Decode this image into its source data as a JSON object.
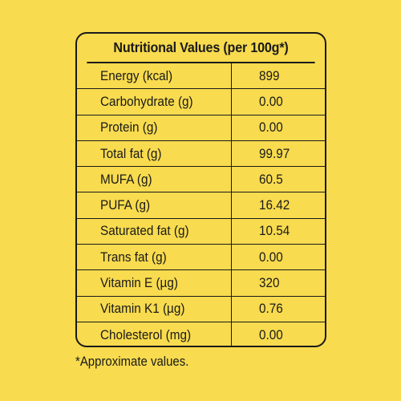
{
  "table": {
    "title": "Nutritional Values (per 100g*)",
    "rows": [
      {
        "label": "Energy (kcal)",
        "value": "899"
      },
      {
        "label": "Carbohydrate (g)",
        "value": "0.00"
      },
      {
        "label": "Protein (g)",
        "value": "0.00"
      },
      {
        "label": "Total fat (g)",
        "value": "99.97"
      },
      {
        "label": "MUFA (g)",
        "value": "60.5"
      },
      {
        "label": "PUFA (g)",
        "value": "16.42"
      },
      {
        "label": "Saturated fat (g)",
        "value": "10.54"
      },
      {
        "label": "Trans fat (g)",
        "value": "0.00"
      },
      {
        "label": "Vitamin E (µg)",
        "value": "320"
      },
      {
        "label": "Vitamin K1 (µg)",
        "value": "0.76"
      },
      {
        "label": "Cholesterol (mg)",
        "value": "0.00"
      }
    ]
  },
  "footnote": "*Approximate values.",
  "colors": {
    "background": "#f8db4e",
    "text": "#1a1a1a"
  }
}
